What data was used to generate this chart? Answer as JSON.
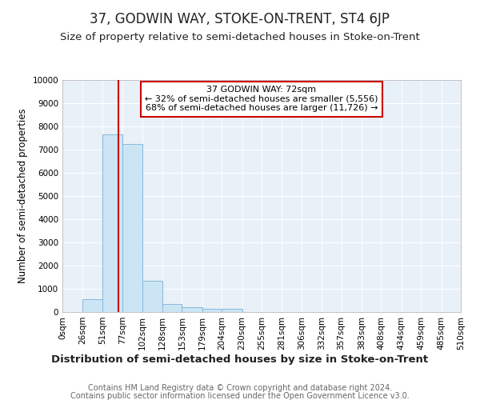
{
  "title": "37, GODWIN WAY, STOKE-ON-TRENT, ST4 6JP",
  "subtitle": "Size of property relative to semi-detached houses in Stoke-on-Trent",
  "xlabel": "Distribution of semi-detached houses by size in Stoke-on-Trent",
  "ylabel": "Number of semi-detached properties",
  "footnote1": "Contains HM Land Registry data © Crown copyright and database right 2024.",
  "footnote2": "Contains public sector information licensed under the Open Government Licence v3.0.",
  "bar_edges": [
    0,
    26,
    51,
    77,
    102,
    128,
    153,
    179,
    204,
    230,
    255,
    281,
    306,
    332,
    357,
    383,
    408,
    434,
    459,
    485,
    510
  ],
  "bar_heights": [
    0,
    560,
    7650,
    7250,
    1350,
    340,
    190,
    130,
    130,
    0,
    0,
    0,
    0,
    0,
    0,
    0,
    0,
    0,
    0,
    0
  ],
  "bar_color": "#cce5f5",
  "bar_edge_color": "#88b8d8",
  "property_size": 72,
  "property_line_color": "#cc0000",
  "annotation_text1": "37 GODWIN WAY: 72sqm",
  "annotation_text2": "← 32% of semi-detached houses are smaller (5,556)",
  "annotation_text3": "68% of semi-detached houses are larger (11,726) →",
  "annotation_box_color": "#ffffff",
  "annotation_box_edge_color": "#cc0000",
  "ylim": [
    0,
    10000
  ],
  "yticks": [
    0,
    1000,
    2000,
    3000,
    4000,
    5000,
    6000,
    7000,
    8000,
    9000,
    10000
  ],
  "tick_labels": [
    "0sqm",
    "26sqm",
    "51sqm",
    "77sqm",
    "102sqm",
    "128sqm",
    "153sqm",
    "179sqm",
    "204sqm",
    "230sqm",
    "255sqm",
    "281sqm",
    "306sqm",
    "332sqm",
    "357sqm",
    "383sqm",
    "408sqm",
    "434sqm",
    "459sqm",
    "485sqm",
    "510sqm"
  ],
  "background_color": "#ffffff",
  "plot_bg_color": "#e8f0f8",
  "grid_color": "#ffffff",
  "title_fontsize": 12,
  "subtitle_fontsize": 9.5,
  "xlabel_fontsize": 9.5,
  "ylabel_fontsize": 8.5,
  "tick_fontsize": 7.5,
  "annotation_fontsize": 8,
  "footnote_fontsize": 7
}
